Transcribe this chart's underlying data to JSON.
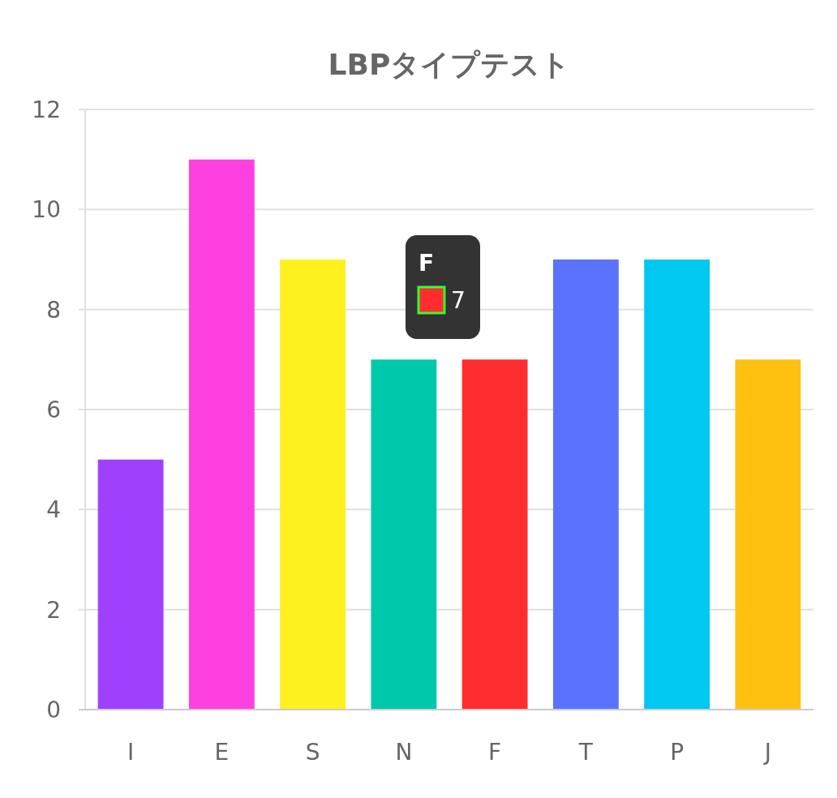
{
  "chart_data": {
    "type": "bar",
    "title": "LBPタイプテスト",
    "categories": [
      "I",
      "E",
      "S",
      "N",
      "F",
      "T",
      "P",
      "J"
    ],
    "values": [
      5,
      11,
      9,
      7,
      7,
      9,
      9,
      7
    ],
    "colors": [
      "#a040ff",
      "#ff40e0",
      "#fff020",
      "#00c8aa",
      "#ff2d2d",
      "#5a73ff",
      "#00c8f0",
      "#ffc010"
    ],
    "ylim": [
      0,
      12
    ],
    "yticks": [
      0,
      2,
      4,
      6,
      8,
      10,
      12
    ],
    "grid": "y",
    "annotations": [
      "F",
      "7"
    ]
  }
}
